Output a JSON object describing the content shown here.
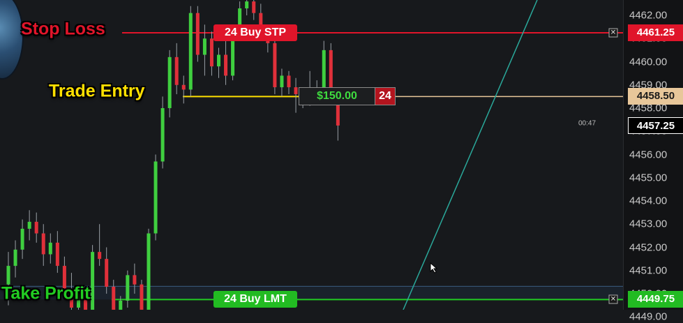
{
  "annotations": {
    "stop_loss": "Stop Loss",
    "trade_entry": "Trade Entry",
    "take_profit": "Take Profit"
  },
  "orders": {
    "stop": {
      "label": "24 Buy STP",
      "price": 4461.25,
      "price_label": "4461.25"
    },
    "entry": {
      "pnl": "$150.00",
      "qty": "24",
      "price": 4458.5,
      "price_label": "4458.50"
    },
    "limit": {
      "label": "24 Buy LMT",
      "price": 4449.75,
      "price_label": "4449.75"
    }
  },
  "last_price": {
    "price": 4457.25,
    "label": "4457.25"
  },
  "bar_timer": "00:47",
  "price_axis": {
    "ticks": [
      "4462.00",
      "4461.00",
      "4460.00",
      "4459.00",
      "4458.00",
      "4457.00",
      "4456.00",
      "4455.00",
      "4454.00",
      "4453.00",
      "4452.00",
      "4451.00",
      "4450.00",
      "4449.00"
    ],
    "visible_min": 4448.75,
    "visible_max": 4462.35
  },
  "colors": {
    "stop": "#e0152a",
    "entry_line": "#e8c79a",
    "entry_label": "#ffe000",
    "profit": "#22cc22",
    "candle_up": "#3fcf3f",
    "candle_down": "#e0303a",
    "trendline": "#2aa89a"
  },
  "candles": [
    [
      4450.4,
      4451.8,
      4449.5,
      4451.2
    ],
    [
      4451.2,
      4452.3,
      4450.7,
      4451.9
    ],
    [
      4451.9,
      4453.2,
      4451.5,
      4452.8
    ],
    [
      4452.8,
      4453.6,
      4452.3,
      4453.1
    ],
    [
      4453.1,
      4453.5,
      4452.2,
      4452.6
    ],
    [
      4452.6,
      4453.0,
      4451.2,
      4451.7
    ],
    [
      4451.7,
      4452.6,
      4451.3,
      4452.2
    ],
    [
      4452.2,
      4452.7,
      4450.9,
      4451.2
    ],
    [
      4451.2,
      4451.6,
      4449.8,
      4450.2
    ],
    [
      4450.2,
      4450.9,
      4449.1,
      4449.4
    ],
    [
      4449.4,
      4450.3,
      4449.0,
      4450.0
    ],
    [
      4450.0,
      4450.2,
      4448.8,
      4449.2
    ],
    [
      4449.2,
      4452.1,
      4448.9,
      4451.8
    ],
    [
      4451.8,
      4453.0,
      4451.2,
      4451.5
    ],
    [
      4451.5,
      4452.0,
      4450.0,
      4450.3
    ],
    [
      4450.3,
      4450.6,
      4448.8,
      4449.1
    ],
    [
      4449.1,
      4449.9,
      4448.8,
      4449.7
    ],
    [
      4449.7,
      4451.0,
      4449.4,
      4450.8
    ],
    [
      4450.8,
      4451.3,
      4450.0,
      4450.4
    ],
    [
      4450.4,
      4450.6,
      4449.0,
      4449.3
    ],
    [
      4449.3,
      4452.8,
      4449.1,
      4452.6
    ],
    [
      4452.6,
      4456.0,
      4452.3,
      4455.7
    ],
    [
      4455.7,
      4458.5,
      4455.4,
      4458.0
    ],
    [
      4458.0,
      4460.5,
      4457.6,
      4460.2
    ],
    [
      4460.2,
      4460.8,
      4458.6,
      4459.0
    ],
    [
      4459.0,
      4459.4,
      4458.2,
      4458.8
    ],
    [
      4458.8,
      4462.4,
      4458.5,
      4462.1
    ],
    [
      4462.1,
      4462.4,
      4460.0,
      4460.3
    ],
    [
      4460.3,
      4461.6,
      4459.4,
      4461.0
    ],
    [
      4461.0,
      4461.3,
      4459.4,
      4459.8
    ],
    [
      4459.8,
      4460.6,
      4459.3,
      4460.3
    ],
    [
      4460.3,
      4460.9,
      4459.0,
      4459.4
    ],
    [
      4459.4,
      4461.5,
      4459.2,
      4461.2
    ],
    [
      4461.2,
      4462.6,
      4461.0,
      4462.3
    ],
    [
      4462.3,
      4462.8,
      4462.0,
      4462.6
    ],
    [
      4462.6,
      4462.9,
      4461.8,
      4462.1
    ],
    [
      4462.1,
      4462.5,
      4461.1,
      4461.3
    ],
    [
      4461.3,
      4461.6,
      4460.4,
      4460.8
    ],
    [
      4460.8,
      4461.3,
      4458.6,
      4458.9
    ],
    [
      4458.9,
      4459.7,
      4458.5,
      4459.4
    ],
    [
      4459.4,
      4459.6,
      4458.6,
      4458.9
    ],
    [
      4458.9,
      4459.3,
      4457.8,
      4458.6
    ],
    [
      4458.6,
      4458.9,
      4458.0,
      4458.3
    ],
    [
      4458.3,
      4459.6,
      4458.1,
      4458.9
    ],
    [
      4458.9,
      4459.2,
      4458.3,
      4458.6
    ],
    [
      4458.6,
      4460.9,
      4458.4,
      4460.5
    ],
    [
      4460.5,
      4460.8,
      4458.4,
      4458.5
    ],
    [
      4458.5,
      4458.7,
      4456.6,
      4457.25
    ]
  ]
}
